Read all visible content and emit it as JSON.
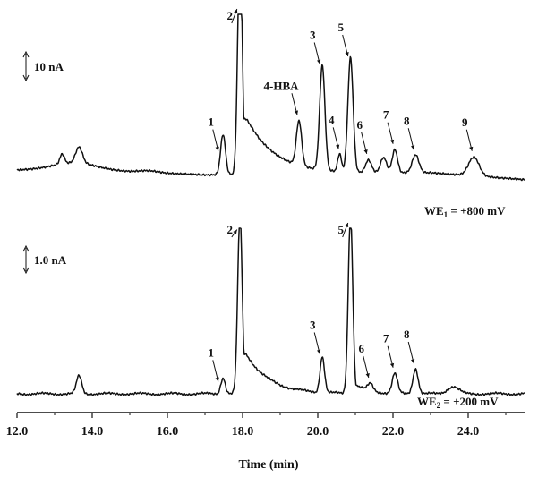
{
  "chart_data": {
    "type": "line",
    "xlabel": "Time (min)",
    "xlim": [
      12.0,
      25.5
    ],
    "ticks": [
      "12.0",
      "14.0",
      "16.0",
      "18.0",
      "20.0",
      "22.0",
      "24.0"
    ],
    "grid": false,
    "traces": [
      {
        "id": "we1",
        "label_main": "WE",
        "label_sub": "1",
        "label_tail": " = +800 mV",
        "scale_label": "10 nA",
        "peaks": [
          {
            "t": 13.2,
            "h": 11,
            "w": 0.06
          },
          {
            "t": 13.65,
            "h": 18,
            "w": 0.09
          },
          {
            "t": 15.5,
            "h": 2,
            "w": 0.25
          },
          {
            "t": 17.48,
            "h": 45,
            "w": 0.065
          },
          {
            "t": 17.93,
            "h": 260,
            "w": 0.06,
            "tail": 0.75,
            "tailh": 80
          },
          {
            "t": 19.5,
            "h": 50,
            "w": 0.07
          },
          {
            "t": 20.12,
            "h": 117,
            "w": 0.07
          },
          {
            "t": 20.58,
            "h": 20,
            "w": 0.05
          },
          {
            "t": 20.87,
            "h": 128,
            "w": 0.07
          },
          {
            "t": 21.35,
            "h": 14,
            "w": 0.08
          },
          {
            "t": 21.75,
            "h": 17,
            "w": 0.08
          },
          {
            "t": 22.05,
            "h": 26,
            "w": 0.07
          },
          {
            "t": 22.6,
            "h": 20,
            "w": 0.09
          },
          {
            "t": 24.15,
            "h": 21,
            "w": 0.14
          }
        ],
        "labels": [
          {
            "text": "1",
            "t": 17.4
          },
          {
            "text": "2",
            "t": 17.9
          },
          {
            "text": "4-HBA",
            "t": 19.5
          },
          {
            "text": "3",
            "t": 20.1
          },
          {
            "text": "4",
            "t": 20.6
          },
          {
            "text": "5",
            "t": 20.85
          },
          {
            "text": "6",
            "t": 21.35
          },
          {
            "text": "7",
            "t": 22.05
          },
          {
            "text": "8",
            "t": 22.6
          },
          {
            "text": "9",
            "t": 24.15
          }
        ]
      },
      {
        "id": "we2",
        "label_main": "WE",
        "label_sub": "2",
        "label_tail": " = +200 mV",
        "scale_label": "1.0 nA",
        "peaks": [
          {
            "t": 13.65,
            "h": 20,
            "w": 0.07
          },
          {
            "t": 17.48,
            "h": 18,
            "w": 0.06
          },
          {
            "t": 17.93,
            "h": 200,
            "w": 0.06,
            "tail": 0.6,
            "tailh": 60
          },
          {
            "t": 20.12,
            "h": 40,
            "w": 0.06
          },
          {
            "t": 20.87,
            "h": 200,
            "w": 0.06,
            "tail": 0.35,
            "tailh": 15
          },
          {
            "t": 21.4,
            "h": 8,
            "w": 0.07
          },
          {
            "t": 22.05,
            "h": 22,
            "w": 0.07
          },
          {
            "t": 22.6,
            "h": 28,
            "w": 0.07
          },
          {
            "t": 23.6,
            "h": 8,
            "w": 0.15
          }
        ],
        "labels": [
          {
            "text": "1",
            "t": 17.4
          },
          {
            "text": "2",
            "t": 17.9
          },
          {
            "text": "3",
            "t": 20.1
          },
          {
            "text": "5",
            "t": 20.85
          },
          {
            "text": "6",
            "t": 21.4
          },
          {
            "text": "7",
            "t": 22.05
          },
          {
            "text": "8",
            "t": 22.6
          }
        ]
      }
    ]
  }
}
